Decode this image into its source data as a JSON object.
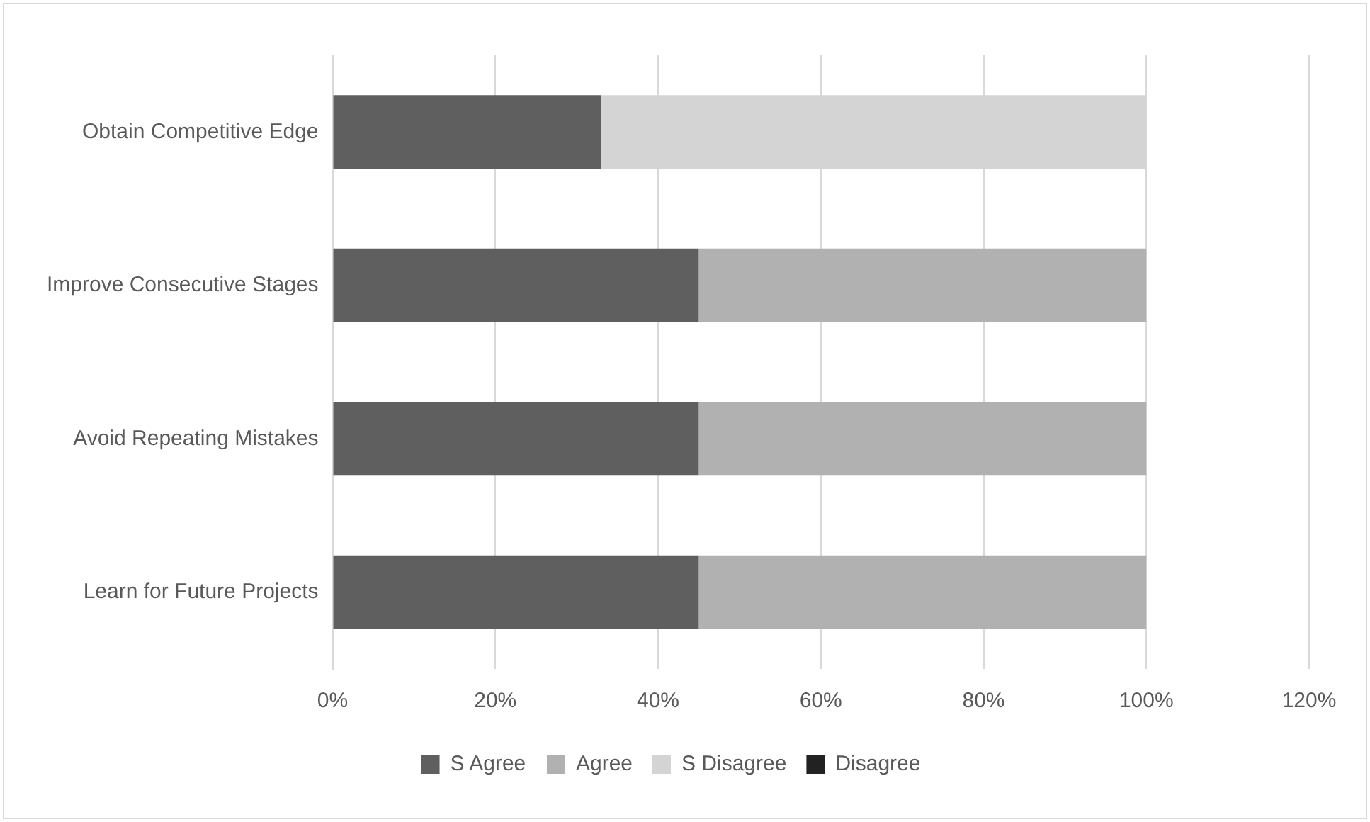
{
  "chart_data": {
    "type": "bar",
    "orientation": "horizontal",
    "stacked": true,
    "categories": [
      "Obtain Competitive Edge",
      "Improve Consecutive Stages",
      "Avoid Repeating Mistakes",
      "Learn for Future Projects"
    ],
    "series": [
      {
        "name": "S Agree",
        "color": "#5f5f5f",
        "values": [
          33,
          45,
          45,
          45
        ]
      },
      {
        "name": "Agree",
        "color": "#b1b1b1",
        "values": [
          0,
          55,
          55,
          55
        ]
      },
      {
        "name": "S Disagree",
        "color": "#d4d4d4",
        "values": [
          67,
          0,
          0,
          0
        ]
      },
      {
        "name": "Disagree",
        "color": "#222222",
        "values": [
          0,
          0,
          0,
          0
        ]
      }
    ],
    "xlim": [
      0,
      120
    ],
    "xticks": [
      {
        "value": 0,
        "label": "0%"
      },
      {
        "value": 20,
        "label": "20%"
      },
      {
        "value": 40,
        "label": "40%"
      },
      {
        "value": 60,
        "label": "60%"
      },
      {
        "value": 80,
        "label": "80%"
      },
      {
        "value": 100,
        "label": "100%"
      },
      {
        "value": 120,
        "label": "120%"
      }
    ],
    "grid": "x",
    "legend": "bottom"
  }
}
